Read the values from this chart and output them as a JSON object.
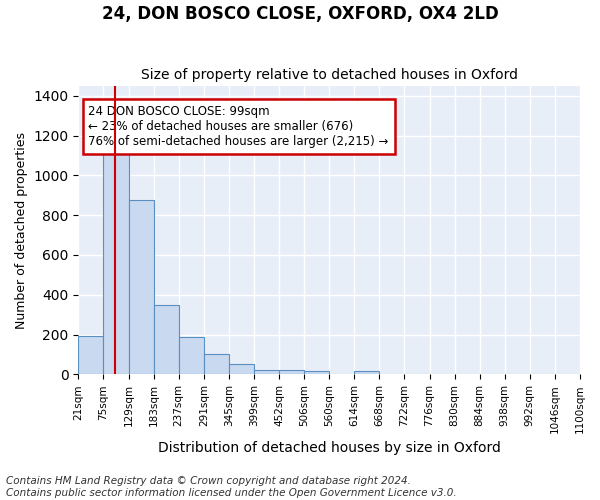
{
  "title": "24, DON BOSCO CLOSE, OXFORD, OX4 2LD",
  "subtitle": "Size of property relative to detached houses in Oxford",
  "xlabel": "Distribution of detached houses by size in Oxford",
  "ylabel": "Number of detached properties",
  "tick_labels": [
    "21sqm",
    "75sqm",
    "129sqm",
    "183sqm",
    "237sqm",
    "291sqm",
    "345sqm",
    "399sqm",
    "452sqm",
    "506sqm",
    "560sqm",
    "614sqm",
    "668sqm",
    "722sqm",
    "776sqm",
    "830sqm",
    "884sqm",
    "938sqm",
    "992sqm",
    "1046sqm",
    "1100sqm"
  ],
  "bar_values": [
    195,
    1115,
    875,
    350,
    190,
    100,
    50,
    22,
    22,
    17,
    0,
    15,
    0,
    0,
    0,
    0,
    0,
    0,
    0,
    0
  ],
  "bar_color": "#c9d9f0",
  "bar_edge_color": "#5a8fc2",
  "vline_color": "#cc0000",
  "vline_pos": 1.45,
  "annotation_text": "24 DON BOSCO CLOSE: 99sqm\n← 23% of detached houses are smaller (676)\n76% of semi-detached houses are larger (2,215) →",
  "annotation_box_edgecolor": "#cc0000",
  "ylim": [
    0,
    1450
  ],
  "yticks": [
    0,
    200,
    400,
    600,
    800,
    1000,
    1200,
    1400
  ],
  "background_color": "#e8eef8",
  "grid_color": "#ffffff",
  "footer_line1": "Contains HM Land Registry data © Crown copyright and database right 2024.",
  "footer_line2": "Contains public sector information licensed under the Open Government Licence v3.0.",
  "title_fontsize": 12,
  "subtitle_fontsize": 10,
  "annot_fontsize": 8.5,
  "footer_fontsize": 7.5,
  "ylabel_fontsize": 9,
  "xlabel_fontsize": 10
}
